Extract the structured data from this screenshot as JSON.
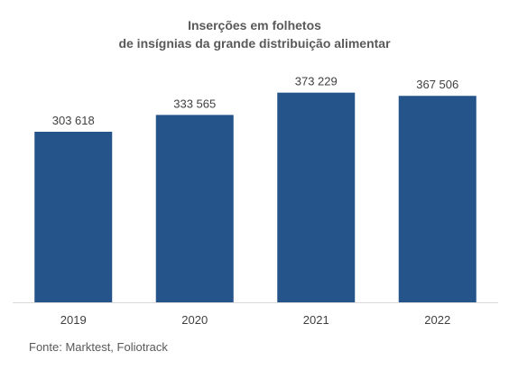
{
  "chart_data": {
    "type": "bar",
    "title_lines": [
      "Inserções em folhetos",
      "de insígnias da grande distribuição alimentar"
    ],
    "categories": [
      "2019",
      "2020",
      "2021",
      "2022"
    ],
    "values": [
      303618,
      333565,
      373229,
      367506
    ],
    "data_labels": [
      "303 618",
      "333 565",
      "373 229",
      "367 506"
    ],
    "ylim": [
      0,
      400000
    ],
    "grid": false,
    "legend": "none",
    "bar_color": "#24548A",
    "axis_color": "#D9D9D9"
  },
  "source": "Fonte: Marktest, Foliotrack"
}
